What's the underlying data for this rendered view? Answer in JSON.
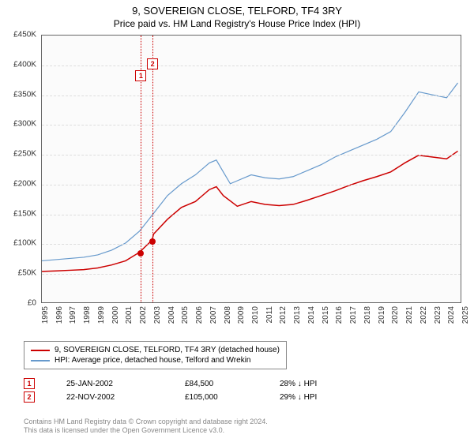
{
  "title": "9, SOVEREIGN CLOSE, TELFORD, TF4 3RY",
  "subtitle": "Price paid vs. HM Land Registry's House Price Index (HPI)",
  "chart": {
    "type": "line",
    "background_color": "#fbfbfb",
    "border_color": "#666666",
    "grid_color": "#dddddd",
    "ylim": [
      0,
      450000
    ],
    "ytick_step": 50000,
    "yticks": [
      "£0",
      "£50K",
      "£100K",
      "£150K",
      "£200K",
      "£250K",
      "£300K",
      "£350K",
      "£400K",
      "£450K"
    ],
    "xlim": [
      1995,
      2025
    ],
    "xticks": [
      "1995",
      "1996",
      "1997",
      "1998",
      "1999",
      "2000",
      "2001",
      "2002",
      "2003",
      "2004",
      "2005",
      "2006",
      "2007",
      "2008",
      "2009",
      "2010",
      "2011",
      "2012",
      "2013",
      "2014",
      "2015",
      "2016",
      "2017",
      "2018",
      "2019",
      "2020",
      "2021",
      "2022",
      "2023",
      "2024",
      "2025"
    ],
    "label_fontsize": 10,
    "series": [
      {
        "name": "property",
        "color": "#cc0000",
        "width": 1.5,
        "points": [
          [
            1995,
            52000
          ],
          [
            1996,
            53000
          ],
          [
            1997,
            54000
          ],
          [
            1998,
            55000
          ],
          [
            1999,
            58000
          ],
          [
            2000,
            63000
          ],
          [
            2001,
            70000
          ],
          [
            2002,
            84500
          ],
          [
            2002.9,
            105000
          ],
          [
            2003,
            115000
          ],
          [
            2004,
            140000
          ],
          [
            2005,
            160000
          ],
          [
            2006,
            170000
          ],
          [
            2007,
            190000
          ],
          [
            2007.5,
            195000
          ],
          [
            2008,
            180000
          ],
          [
            2009,
            162000
          ],
          [
            2010,
            170000
          ],
          [
            2011,
            165000
          ],
          [
            2012,
            163000
          ],
          [
            2013,
            165000
          ],
          [
            2014,
            172000
          ],
          [
            2015,
            180000
          ],
          [
            2016,
            188000
          ],
          [
            2017,
            197000
          ],
          [
            2018,
            205000
          ],
          [
            2019,
            212000
          ],
          [
            2020,
            220000
          ],
          [
            2021,
            235000
          ],
          [
            2022,
            248000
          ],
          [
            2023,
            245000
          ],
          [
            2024,
            242000
          ],
          [
            2024.8,
            255000
          ]
        ]
      },
      {
        "name": "hpi",
        "color": "#6699cc",
        "width": 1.2,
        "points": [
          [
            1995,
            70000
          ],
          [
            1996,
            72000
          ],
          [
            1997,
            74000
          ],
          [
            1998,
            76000
          ],
          [
            1999,
            80000
          ],
          [
            2000,
            88000
          ],
          [
            2001,
            100000
          ],
          [
            2002,
            120000
          ],
          [
            2003,
            150000
          ],
          [
            2004,
            180000
          ],
          [
            2005,
            200000
          ],
          [
            2006,
            215000
          ],
          [
            2007,
            235000
          ],
          [
            2007.5,
            240000
          ],
          [
            2008,
            220000
          ],
          [
            2008.5,
            200000
          ],
          [
            2009,
            205000
          ],
          [
            2010,
            215000
          ],
          [
            2011,
            210000
          ],
          [
            2012,
            208000
          ],
          [
            2013,
            212000
          ],
          [
            2014,
            222000
          ],
          [
            2015,
            232000
          ],
          [
            2016,
            245000
          ],
          [
            2017,
            255000
          ],
          [
            2018,
            265000
          ],
          [
            2019,
            275000
          ],
          [
            2020,
            288000
          ],
          [
            2021,
            320000
          ],
          [
            2022,
            355000
          ],
          [
            2023,
            350000
          ],
          [
            2024,
            345000
          ],
          [
            2024.8,
            370000
          ]
        ]
      }
    ],
    "sale_markers": [
      {
        "n": "1",
        "x": 2002.07,
        "y": 84500
      },
      {
        "n": "2",
        "x": 2002.9,
        "y": 105000
      }
    ],
    "marker_label_y_offset": -225
  },
  "legend": {
    "items": [
      {
        "label": "9, SOVEREIGN CLOSE, TELFORD, TF4 3RY (detached house)",
        "color": "#cc0000"
      },
      {
        "label": "HPI: Average price, detached house, Telford and Wrekin",
        "color": "#6699cc"
      }
    ]
  },
  "sales": [
    {
      "n": "1",
      "date": "25-JAN-2002",
      "price": "£84,500",
      "hpi": "28% ↓ HPI"
    },
    {
      "n": "2",
      "date": "22-NOV-2002",
      "price": "£105,000",
      "hpi": "29% ↓ HPI"
    }
  ],
  "footer": {
    "line1": "Contains HM Land Registry data © Crown copyright and database right 2024.",
    "line2": "This data is licensed under the Open Government Licence v3.0."
  }
}
